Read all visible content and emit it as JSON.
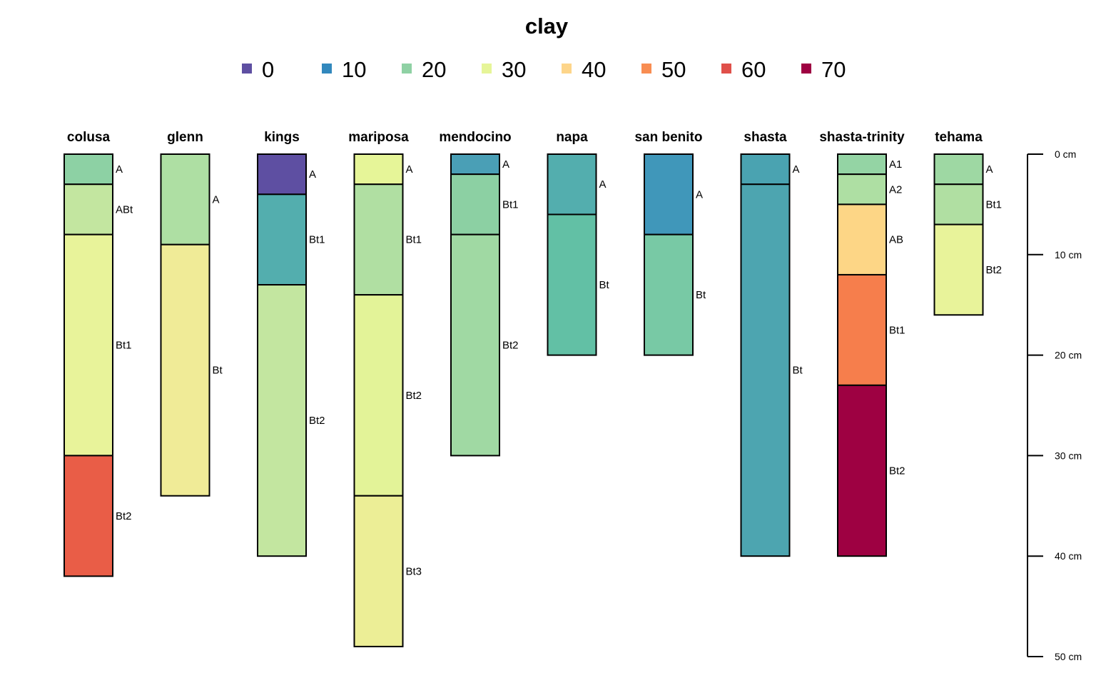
{
  "chart_data": {
    "type": "soil-profile",
    "title": "clay",
    "legend": {
      "position": "top",
      "items": [
        {
          "label": "0",
          "color": "#5E4FA2"
        },
        {
          "label": "10",
          "color": "#3288BD"
        },
        {
          "label": "20",
          "color": "#8FD1A4"
        },
        {
          "label": "30",
          "color": "#E6F598"
        },
        {
          "label": "40",
          "color": "#FDD58A"
        },
        {
          "label": "50",
          "color": "#F88D52"
        },
        {
          "label": "60",
          "color": "#E0504A"
        },
        {
          "label": "70",
          "color": "#9E0142"
        }
      ]
    },
    "depth_axis": {
      "unit": "cm",
      "range": [
        0,
        50
      ],
      "ticks": [
        {
          "value": 0,
          "label": "0 cm"
        },
        {
          "value": 10,
          "label": "10 cm"
        },
        {
          "value": 20,
          "label": "20 cm"
        },
        {
          "value": 30,
          "label": "30 cm"
        },
        {
          "value": 40,
          "label": "40 cm"
        },
        {
          "value": 50,
          "label": "50 cm"
        }
      ]
    },
    "profiles": [
      {
        "name": "colusa",
        "horizons": [
          {
            "name": "A",
            "top": 0,
            "bottom": 3,
            "color": "#8DD1A4"
          },
          {
            "name": "ABt",
            "top": 3,
            "bottom": 8,
            "color": "#C3E6A0"
          },
          {
            "name": "Bt1",
            "top": 8,
            "bottom": 30,
            "color": "#E8F39A"
          },
          {
            "name": "Bt2",
            "top": 30,
            "bottom": 42,
            "color": "#E95D47"
          }
        ]
      },
      {
        "name": "glenn",
        "horizons": [
          {
            "name": "A",
            "top": 0,
            "bottom": 9,
            "color": "#AEDFA3"
          },
          {
            "name": "Bt",
            "top": 9,
            "bottom": 34,
            "color": "#F0EB97"
          }
        ]
      },
      {
        "name": "kings",
        "horizons": [
          {
            "name": "A",
            "top": 0,
            "bottom": 4,
            "color": "#5E4FA2"
          },
          {
            "name": "Bt1",
            "top": 4,
            "bottom": 13,
            "color": "#53AEAE"
          },
          {
            "name": "Bt2",
            "top": 13,
            "bottom": 40,
            "color": "#C3E6A0"
          }
        ]
      },
      {
        "name": "mariposa",
        "horizons": [
          {
            "name": "A",
            "top": 0,
            "bottom": 3,
            "color": "#E6F598"
          },
          {
            "name": "Bt1",
            "top": 3,
            "bottom": 14,
            "color": "#B0DFA2"
          },
          {
            "name": "Bt2",
            "top": 14,
            "bottom": 34,
            "color": "#E3F398"
          },
          {
            "name": "Bt3",
            "top": 34,
            "bottom": 49,
            "color": "#ECEE96"
          }
        ]
      },
      {
        "name": "mendocino",
        "horizons": [
          {
            "name": "A",
            "top": 0,
            "bottom": 2,
            "color": "#4A9FB6"
          },
          {
            "name": "Bt1",
            "top": 2,
            "bottom": 8,
            "color": "#8CD0A3"
          },
          {
            "name": "Bt2",
            "top": 8,
            "bottom": 30,
            "color": "#A0D9A3"
          }
        ]
      },
      {
        "name": "napa",
        "horizons": [
          {
            "name": "A",
            "top": 0,
            "bottom": 6,
            "color": "#53AEAE"
          },
          {
            "name": "Bt",
            "top": 6,
            "bottom": 20,
            "color": "#62C0A5"
          }
        ]
      },
      {
        "name": "san benito",
        "horizons": [
          {
            "name": "A",
            "top": 0,
            "bottom": 8,
            "color": "#4097BA"
          },
          {
            "name": "Bt",
            "top": 8,
            "bottom": 20,
            "color": "#78C9A5"
          }
        ]
      },
      {
        "name": "shasta",
        "horizons": [
          {
            "name": "A",
            "top": 0,
            "bottom": 3,
            "color": "#4AA3B1"
          },
          {
            "name": "Bt",
            "top": 3,
            "bottom": 40,
            "color": "#4DA5B0"
          }
        ]
      },
      {
        "name": "shasta-trinity",
        "horizons": [
          {
            "name": "A1",
            "top": 0,
            "bottom": 2,
            "color": "#94D4A4"
          },
          {
            "name": "A2",
            "top": 2,
            "bottom": 5,
            "color": "#AEDFA3"
          },
          {
            "name": "AB",
            "top": 5,
            "bottom": 12,
            "color": "#FDD686"
          },
          {
            "name": "Bt1",
            "top": 12,
            "bottom": 23,
            "color": "#F67E4C"
          },
          {
            "name": "Bt2",
            "top": 23,
            "bottom": 40,
            "color": "#9E0142"
          }
        ]
      },
      {
        "name": "tehama",
        "horizons": [
          {
            "name": "A",
            "top": 0,
            "bottom": 3,
            "color": "#9ED8A3"
          },
          {
            "name": "Bt1",
            "top": 3,
            "bottom": 7,
            "color": "#B0DFA2"
          },
          {
            "name": "Bt2",
            "top": 7,
            "bottom": 16,
            "color": "#E8F39A"
          }
        ]
      }
    ]
  }
}
